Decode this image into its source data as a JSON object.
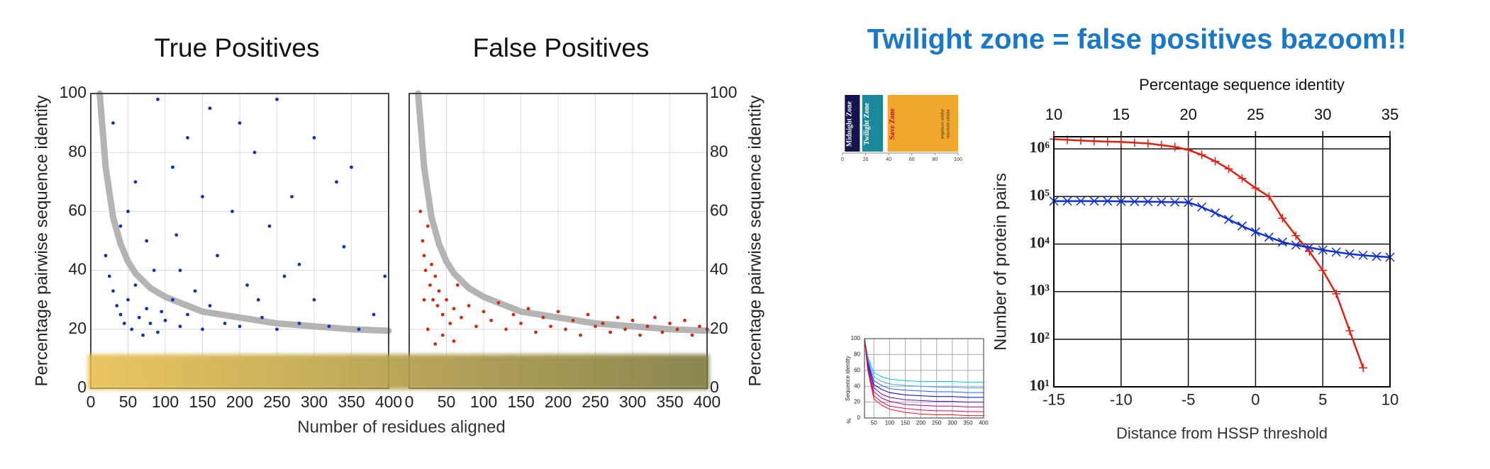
{
  "heading": "Twilight zone = false positives bazoom!!",
  "chart_data": [
    {
      "type": "scatter",
      "title": "True Positives",
      "xlabel": "Number of residues aligned",
      "ylabel": "Percentage pairwise sequence identity",
      "y_axis_side": "left",
      "xlim": [
        0,
        400
      ],
      "xticks": [
        0,
        50,
        100,
        150,
        200,
        250,
        300,
        350,
        400
      ],
      "ylim": [
        0,
        100
      ],
      "yticks": [
        0,
        20,
        40,
        60,
        80,
        100
      ],
      "grid": true,
      "series": [
        {
          "color": "#b4b4b4",
          "mode": "line",
          "x": [
            12,
            20,
            30,
            40,
            50,
            60,
            80,
            100,
            150,
            200,
            250,
            300,
            350,
            400
          ],
          "values": [
            100,
            75,
            58,
            49,
            43,
            39,
            34,
            31,
            26,
            24,
            22,
            21,
            20,
            19.5
          ]
        },
        {
          "color": "#1432b4",
          "mode": "points",
          "x": [
            20,
            25,
            30,
            35,
            40,
            45,
            50,
            55,
            60,
            65,
            70,
            75,
            80,
            85,
            90,
            95,
            100,
            110,
            115,
            120,
            130,
            140,
            150,
            160,
            170,
            180,
            190,
            200,
            210,
            220,
            230,
            240,
            250,
            260,
            270,
            280,
            300,
            320,
            340,
            360,
            380,
            395,
            30,
            60,
            90,
            130,
            160,
            50,
            110,
            200,
            250,
            300,
            330,
            120,
            75,
            40,
            150,
            225,
            280,
            350
          ],
          "values": [
            45,
            38,
            33,
            28,
            25,
            22,
            30,
            20,
            35,
            24,
            18,
            27,
            22,
            40,
            19,
            26,
            23,
            30,
            52,
            21,
            25,
            33,
            20,
            28,
            45,
            22,
            60,
            21,
            35,
            80,
            24,
            55,
            20,
            38,
            65,
            22,
            30,
            21,
            48,
            20,
            25,
            38,
            90,
            70,
            98,
            85,
            95,
            60,
            75,
            90,
            98,
            85,
            70,
            40,
            50,
            55,
            65,
            30,
            42,
            75
          ]
        }
      ]
    },
    {
      "type": "scatter",
      "title": "False Positives",
      "ylabel": "Percentage pairwise sequence identity",
      "y_axis_side": "right",
      "xlim": [
        0,
        400
      ],
      "xticks": [
        0,
        50,
        100,
        150,
        200,
        250,
        300,
        350,
        400
      ],
      "ylim": [
        0,
        100
      ],
      "yticks": [
        0,
        20,
        40,
        60,
        80,
        100
      ],
      "grid": true,
      "series": [
        {
          "color": "#b4b4b4",
          "mode": "line",
          "x": [
            12,
            20,
            30,
            40,
            50,
            60,
            80,
            100,
            150,
            200,
            250,
            300,
            350,
            400
          ],
          "values": [
            100,
            75,
            58,
            49,
            43,
            39,
            34,
            31,
            26,
            24,
            22,
            21,
            20,
            19.5
          ]
        },
        {
          "color": "#d02a10",
          "mode": "points",
          "x": [
            15,
            18,
            20,
            22,
            25,
            28,
            30,
            32,
            35,
            38,
            40,
            45,
            50,
            55,
            60,
            65,
            70,
            80,
            90,
            100,
            110,
            120,
            130,
            140,
            150,
            160,
            170,
            180,
            190,
            200,
            210,
            220,
            230,
            240,
            250,
            260,
            270,
            280,
            290,
            300,
            310,
            320,
            330,
            340,
            350,
            360,
            370,
            380,
            390,
            400,
            25,
            35,
            45,
            60,
            20
          ],
          "values": [
            60,
            50,
            45,
            40,
            55,
            35,
            42,
            30,
            38,
            28,
            33,
            25,
            30,
            22,
            27,
            35,
            24,
            28,
            21,
            26,
            23,
            29,
            20,
            25,
            22,
            27,
            19,
            24,
            21,
            26,
            20,
            23,
            18,
            25,
            21,
            22,
            19,
            24,
            20,
            23,
            18,
            21,
            24,
            19,
            22,
            20,
            23,
            18,
            21,
            20,
            20,
            15,
            18,
            16,
            30
          ]
        }
      ]
    },
    {
      "type": "zones",
      "xlim": [
        0,
        100
      ],
      "xticks": [
        0,
        20,
        40,
        60,
        80,
        100
      ],
      "zones": [
        {
          "label": "Midnight Zone",
          "from": 2,
          "to": 15,
          "color": "#141450"
        },
        {
          "label": "Twilight Zone",
          "from": 17,
          "to": 35,
          "color": "#1a8a9a"
        },
        {
          "label": "Save Zone",
          "from": 39,
          "to": 100,
          "color": "#f2a72a"
        }
      ],
      "annotations": [
        "sequences similar",
        "structures similar"
      ]
    },
    {
      "type": "line",
      "ylabel": "Sequence identity",
      "yunit": "%",
      "xlim": [
        20,
        400
      ],
      "xticks": [
        50,
        100,
        150,
        200,
        250,
        300,
        350,
        400
      ],
      "ylim": [
        0,
        100
      ],
      "yticks": [
        0,
        20,
        40,
        60,
        80,
        100
      ],
      "grid": true,
      "x": [
        20,
        30,
        40,
        50,
        75,
        100,
        150,
        200,
        250,
        300,
        350,
        400
      ],
      "series": [
        {
          "color": "#00c8e0",
          "values": [
            100,
            78,
            67,
            57,
            52,
            49,
            47,
            46,
            46,
            46,
            45,
            45
          ]
        },
        {
          "color": "#40a0ff",
          "values": [
            100,
            75,
            63,
            52,
            46,
            43,
            41,
            40,
            39,
            39,
            38,
            38
          ]
        },
        {
          "color": "#2060ff",
          "values": [
            100,
            73,
            59,
            47,
            41,
            37,
            35,
            34,
            33,
            33,
            32,
            32
          ]
        },
        {
          "color": "#0000e0",
          "values": [
            100,
            70,
            56,
            42,
            36,
            32,
            29,
            28,
            27,
            27,
            26,
            26
          ]
        },
        {
          "color": "#6010c0",
          "values": [
            100,
            68,
            52,
            38,
            30,
            26,
            23,
            22,
            21,
            21,
            20,
            20
          ]
        },
        {
          "color": "#b000a0",
          "values": [
            100,
            66,
            48,
            33,
            25,
            21,
            17,
            16,
            15,
            15,
            14,
            14
          ]
        },
        {
          "color": "#e00060",
          "values": [
            100,
            63,
            45,
            28,
            20,
            15,
            12,
            10,
            9,
            9,
            8,
            8
          ]
        },
        {
          "color": "#ff1010",
          "values": [
            100,
            61,
            42,
            24,
            16,
            11,
            7,
            5,
            4,
            4,
            3,
            3
          ]
        }
      ]
    },
    {
      "type": "line",
      "xlabel": "Distance from HSSP threshold",
      "ylabel": "Number of protein pairs",
      "x2label": "Percentage sequence identity",
      "xlim": [
        -15,
        10
      ],
      "xticks": [
        -15,
        -10,
        -5,
        0,
        5,
        10
      ],
      "x2lim": [
        10,
        35
      ],
      "x2ticks": [
        10,
        15,
        20,
        25,
        30,
        35
      ],
      "ylim": [
        10,
        1800000
      ],
      "log_y": true,
      "yticks": [
        {
          "value": 10,
          "label": "10¹"
        },
        {
          "value": 100,
          "label": "10²"
        },
        {
          "value": 1000,
          "label": "10³"
        },
        {
          "value": 10000,
          "label": "10⁴"
        },
        {
          "value": 100000,
          "label": "10⁵"
        },
        {
          "value": 1000000,
          "label": "10⁶"
        }
      ],
      "grid": true,
      "series": [
        {
          "color": "#e02010",
          "marker": "plus",
          "x": [
            -15,
            -14,
            -13,
            -12,
            -11,
            -10,
            -9,
            -8,
            -7,
            -6,
            -5,
            -4,
            -3,
            -2,
            -1,
            0,
            1,
            2,
            3,
            4,
            5,
            6,
            7,
            8
          ],
          "values": [
            1600000,
            1550000,
            1500000,
            1450000,
            1420000,
            1400000,
            1350000,
            1300000,
            1200000,
            1100000,
            950000,
            750000,
            550000,
            380000,
            240000,
            150000,
            100000,
            35000,
            15000,
            7000,
            2800,
            900,
            150,
            25
          ]
        },
        {
          "color": "#1030d0",
          "marker": "cross",
          "x": [
            -15,
            -14,
            -13,
            -12,
            -11,
            -10,
            -9,
            -8,
            -7,
            -6,
            -5,
            -4,
            -3,
            -2,
            -1,
            0,
            1,
            2,
            3,
            4,
            5,
            6,
            7,
            8,
            9,
            10
          ],
          "values": [
            80000,
            80000,
            80000,
            80000,
            80000,
            79000,
            78000,
            78000,
            77000,
            76000,
            75000,
            60000,
            45000,
            33000,
            24000,
            18000,
            14000,
            11000,
            9500,
            8500,
            7500,
            6800,
            6200,
            5800,
            5500,
            5300
          ]
        }
      ]
    }
  ]
}
